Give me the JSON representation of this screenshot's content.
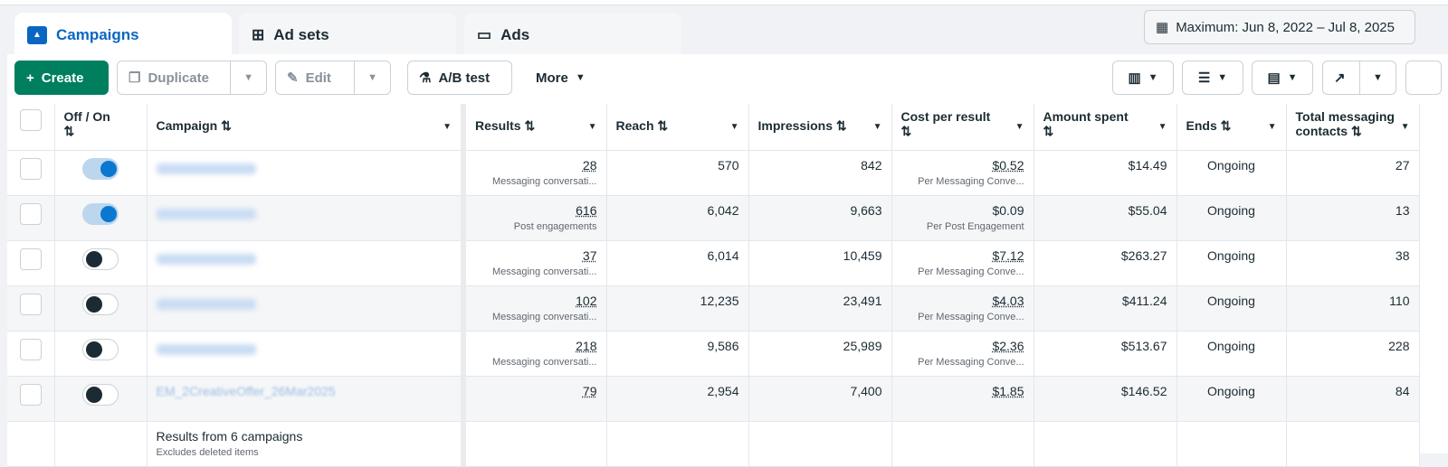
{
  "tabs": [
    {
      "label": "Campaigns",
      "icon": "campaign-folder-icon"
    },
    {
      "label": "Ad sets",
      "icon": "grid-icon"
    },
    {
      "label": "Ads",
      "icon": "ad-window-icon"
    }
  ],
  "date_range": "Maximum: Jun 8, 2022 – Jul 8, 2025",
  "toolbar": {
    "create": "Create",
    "duplicate": "Duplicate",
    "edit": "Edit",
    "ab_test": "A/B test",
    "more": "More"
  },
  "columns": [
    "Off / On",
    "Campaign",
    "Results",
    "Reach",
    "Impressions",
    "Cost per result",
    "Amount spent",
    "Ends",
    "Total messaging contacts"
  ],
  "rows": [
    {
      "on": true,
      "name": "",
      "results": "28",
      "results_type": "Messaging conversati...",
      "reach": "570",
      "impressions": "842",
      "cpr": "$0.52",
      "cpr_type": "Per Messaging Conve...",
      "spent": "$14.49",
      "ends": "Ongoing",
      "contacts": "27"
    },
    {
      "on": true,
      "name": "",
      "results": "616",
      "results_type": "Post engagements",
      "reach": "6,042",
      "impressions": "9,663",
      "cpr": "$0.09",
      "cpr_type": "Per Post Engagement",
      "spent": "$55.04",
      "ends": "Ongoing",
      "contacts": "13"
    },
    {
      "on": false,
      "name": "",
      "results": "37",
      "results_type": "Messaging conversati...",
      "reach": "6,014",
      "impressions": "10,459",
      "cpr": "$7.12",
      "cpr_type": "Per Messaging Conve...",
      "spent": "$263.27",
      "ends": "Ongoing",
      "contacts": "38"
    },
    {
      "on": false,
      "name": "",
      "results": "102",
      "results_type": "Messaging conversati...",
      "reach": "12,235",
      "impressions": "23,491",
      "cpr": "$4.03",
      "cpr_type": "Per Messaging Conve...",
      "spent": "$411.24",
      "ends": "Ongoing",
      "contacts": "110"
    },
    {
      "on": false,
      "name": "",
      "results": "218",
      "results_type": "Messaging conversati...",
      "reach": "9,586",
      "impressions": "25,989",
      "cpr": "$2.36",
      "cpr_type": "Per Messaging Conve...",
      "spent": "$513.67",
      "ends": "Ongoing",
      "contacts": "228"
    },
    {
      "on": false,
      "name": "EM_2CreativeOffer_26Mar2025",
      "results": "79",
      "results_type": "",
      "reach": "2,954",
      "impressions": "7,400",
      "cpr": "$1.85",
      "cpr_type": "",
      "spent": "$146.52",
      "ends": "Ongoing",
      "contacts": "84"
    }
  ],
  "footer": {
    "title": "Results from 6 campaigns",
    "note": "Excludes deleted items"
  }
}
